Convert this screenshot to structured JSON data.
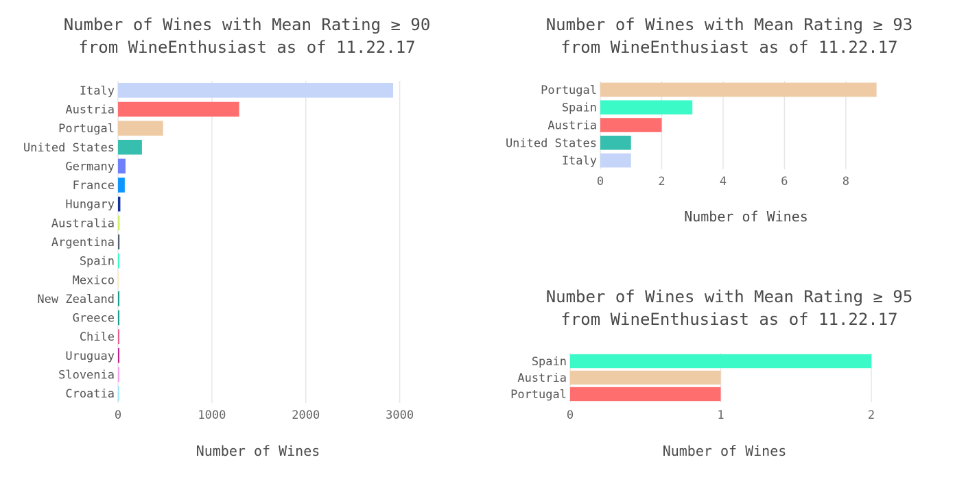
{
  "chart_data": [
    {
      "type": "bar",
      "orientation": "horizontal",
      "title": [
        "Number of Wines with Mean Rating ≥ 90",
        "from WineEnthusiast as of 11.22.17"
      ],
      "xlabel": "Number of Wines",
      "ylabel": "",
      "categories": [
        "Italy",
        "Austria",
        "Portugal",
        "United States",
        "Germany",
        "France",
        "Hungary",
        "Australia",
        "Argentina",
        "Spain",
        "Mexico",
        "New Zealand",
        "Greece",
        "Chile",
        "Uruguay",
        "Slovenia",
        "Croatia"
      ],
      "values": [
        2930,
        1290,
        480,
        255,
        80,
        72,
        25,
        18,
        16,
        12,
        7,
        12,
        11,
        12,
        14,
        9,
        9
      ],
      "colors": [
        "#c5d5fa",
        "#ff6e6e",
        "#eecba4",
        "#36bfae",
        "#6e80fa",
        "#0d96ff",
        "#10329a",
        "#cdf06a",
        "#545f72",
        "#3bfac8",
        "#fbeed0",
        "#199a8a",
        "#199a8a",
        "#e8608a",
        "#bf2090",
        "#f7a0e5",
        "#a5e8f5"
      ],
      "xlim": [
        0,
        3200
      ],
      "xticks": [
        0,
        1000,
        2000,
        3000
      ],
      "grid": true,
      "legend": "none"
    },
    {
      "type": "bar",
      "orientation": "horizontal",
      "title": [
        "Number of Wines with Mean Rating ≥ 93",
        "from WineEnthusiast as of 11.22.17"
      ],
      "xlabel": "Number of Wines",
      "ylabel": "",
      "categories": [
        "Portugal",
        "Spain",
        "Austria",
        "United States",
        "Italy"
      ],
      "values": [
        9,
        3,
        2,
        1,
        1
      ],
      "colors": [
        "#eecba4",
        "#3bfac8",
        "#ff6e6e",
        "#36bfae",
        "#c5d5fa"
      ],
      "xlim": [
        0,
        9.5
      ],
      "xticks": [
        0,
        2,
        4,
        6,
        8
      ],
      "grid": true,
      "legend": "none"
    },
    {
      "type": "bar",
      "orientation": "horizontal",
      "title": [
        "Number of Wines with Mean Rating ≥ 95",
        "from WineEnthusiast as of 11.22.17"
      ],
      "xlabel": "Number of Wines",
      "ylabel": "",
      "categories": [
        "Spain",
        "Austria",
        "Portugal"
      ],
      "values": [
        2,
        1,
        1
      ],
      "colors": [
        "#3bfac8",
        "#eecba4",
        "#ff6e6e"
      ],
      "xlim": [
        0,
        2.05
      ],
      "xticks": [
        0,
        1,
        2
      ],
      "grid": true,
      "legend": "none"
    }
  ]
}
